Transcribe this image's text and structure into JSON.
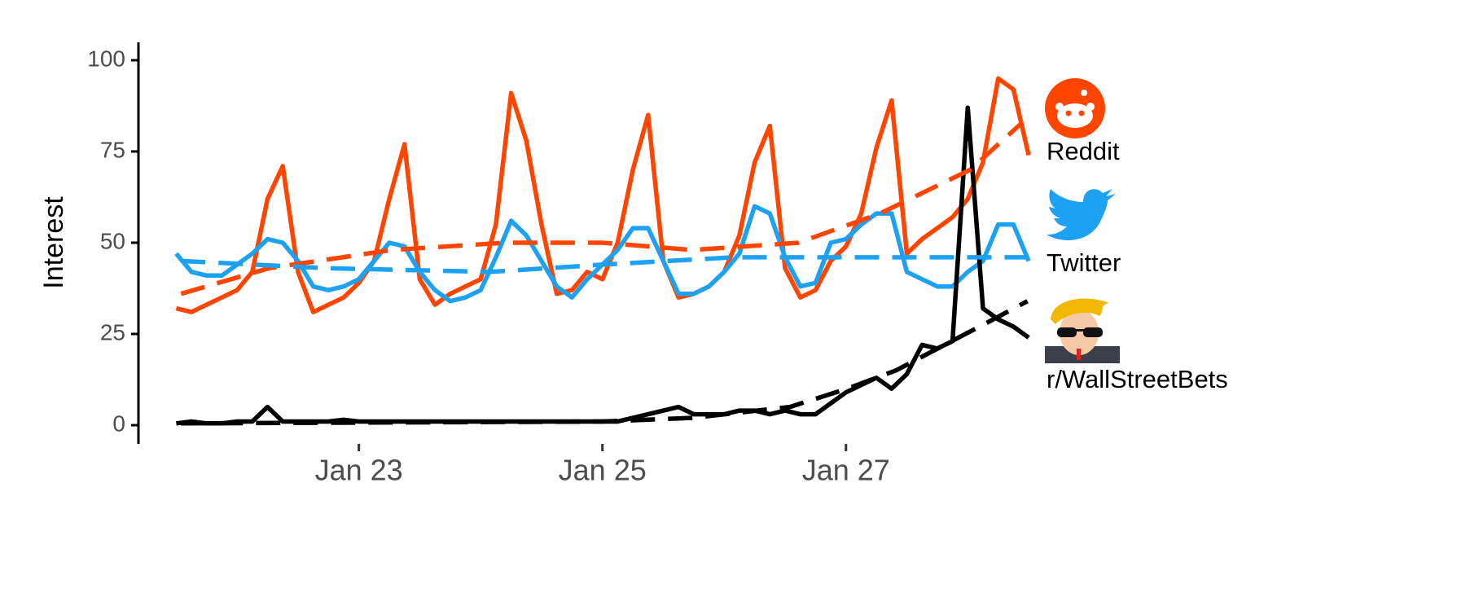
{
  "chart_data": {
    "type": "line",
    "ylabel": "Interest",
    "ylim": [
      -5,
      104.5
    ],
    "yticks": [
      0,
      25,
      50,
      75,
      100
    ],
    "xlim": [
      21.19,
      28.62
    ],
    "xticks": [
      {
        "value": 23,
        "label": "Jan 23"
      },
      {
        "value": 25,
        "label": "Jan 25"
      },
      {
        "value": 27,
        "label": "Jan 27"
      }
    ],
    "x": [
      21.5,
      21.625,
      21.75,
      21.875,
      22,
      22.125,
      22.25,
      22.375,
      22.5,
      22.625,
      22.75,
      22.875,
      23,
      23.125,
      23.25,
      23.375,
      23.5,
      23.625,
      23.75,
      23.875,
      24,
      24.125,
      24.25,
      24.375,
      24.5,
      24.625,
      24.75,
      24.875,
      25,
      25.125,
      25.25,
      25.375,
      25.5,
      25.625,
      25.75,
      25.875,
      26,
      26.125,
      26.25,
      26.375,
      26.5,
      26.625,
      26.75,
      26.875,
      27,
      27.125,
      27.25,
      27.375,
      27.5,
      27.625,
      27.75,
      27.875,
      28,
      28.125,
      28.25,
      28.375,
      28.5
    ],
    "series": [
      {
        "name": "Reddit",
        "color": "#ff4500",
        "values": [
          32,
          31,
          33,
          35,
          37,
          42,
          62,
          71,
          42,
          31,
          33,
          35,
          39,
          45,
          62,
          77,
          40,
          33,
          36,
          38,
          40,
          55,
          91,
          78,
          55,
          36,
          37,
          42,
          40,
          50,
          70,
          85,
          45,
          35,
          36,
          38,
          42,
          52,
          72,
          82,
          43,
          35,
          37,
          45,
          49,
          58,
          76,
          89,
          47,
          51,
          54,
          57,
          62,
          72,
          95,
          92,
          74
        ]
      },
      {
        "name": "Twitter",
        "color": "#1da1f2",
        "values": [
          47,
          42,
          41,
          41,
          44,
          47,
          51,
          50,
          45,
          38,
          37,
          38,
          40,
          45,
          50,
          49,
          42,
          37,
          34,
          35,
          37,
          46,
          56,
          52,
          45,
          38,
          35,
          40,
          44,
          48,
          54,
          54,
          45,
          36,
          36,
          38,
          42,
          47,
          60,
          58,
          46,
          38,
          39,
          50,
          51,
          55,
          58,
          58,
          42,
          40,
          38,
          38,
          42,
          45,
          55,
          55,
          45
        ]
      },
      {
        "name": "r/WallStreetBets",
        "color": "#000000",
        "values": [
          0.5,
          1,
          0.5,
          0.5,
          1,
          1,
          5,
          1,
          1,
          1,
          1,
          1.5,
          1,
          1,
          1,
          1,
          1,
          1,
          1,
          1,
          1,
          1,
          1,
          1,
          1,
          1,
          1,
          1,
          1,
          1,
          2,
          3,
          4,
          5,
          3,
          3,
          3,
          4,
          4,
          3,
          4,
          3,
          3,
          6,
          9,
          11,
          13,
          10,
          14,
          22,
          21,
          23,
          87,
          32,
          29,
          27,
          24
        ]
      },
      {
        "color": "#ff4500",
        "dash": true,
        "x": [
          21.54,
          22.26,
          23.27,
          24.2,
          25.0,
          25.74,
          26.61,
          27.28,
          28.02,
          28.45
        ],
        "values": [
          36,
          43,
          48,
          50,
          50,
          48,
          50,
          58,
          70,
          83
        ]
      },
      {
        "color": "#1da1f2",
        "dash": true,
        "x": [
          21.54,
          22.74,
          24.08,
          25.0,
          26.07,
          28.49
        ],
        "values": [
          45,
          43,
          42,
          44,
          46,
          46
        ]
      },
      {
        "color": "#000000",
        "dash": true,
        "x": [
          21.54,
          25.0,
          25.74,
          26.54,
          27.01,
          27.41,
          27.81,
          28.21,
          28.49
        ],
        "values": [
          0.5,
          1,
          2,
          5,
          10,
          15,
          22,
          29,
          34
        ]
      }
    ]
  }
}
